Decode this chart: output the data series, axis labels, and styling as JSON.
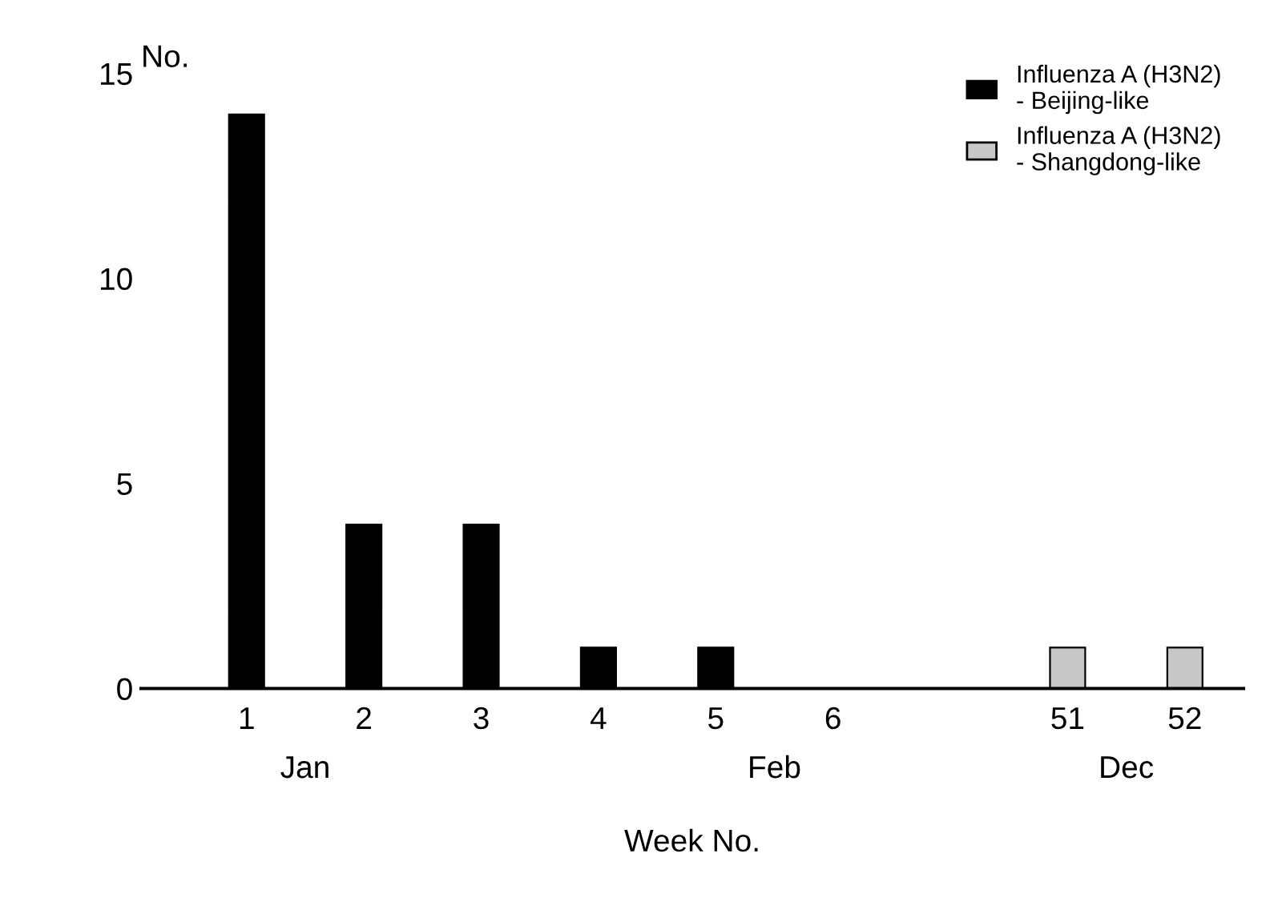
{
  "chart_data": {
    "type": "bar",
    "xlabel": "Week No.",
    "ylabel": "No.",
    "categories": [
      "1",
      "2",
      "3",
      "4",
      "5",
      "6",
      null,
      "51",
      "52"
    ],
    "series": [
      {
        "name": "Influenza A (H3N2)\n- Beijing-like",
        "color": "#000000",
        "values": [
          14,
          4,
          4,
          1,
          1,
          null,
          null,
          null,
          null
        ]
      },
      {
        "name": "Influenza A (H3N2)\n- Shangdong-like",
        "color": "#c8c8c8",
        "values": [
          null,
          null,
          null,
          null,
          null,
          null,
          null,
          1,
          1
        ]
      }
    ],
    "ylim": [
      0,
      15
    ],
    "yticks": [
      0,
      5,
      10,
      15
    ],
    "grid": false,
    "legend": "top right",
    "annotations": [
      "Jan",
      "Feb",
      "Dec"
    ]
  }
}
